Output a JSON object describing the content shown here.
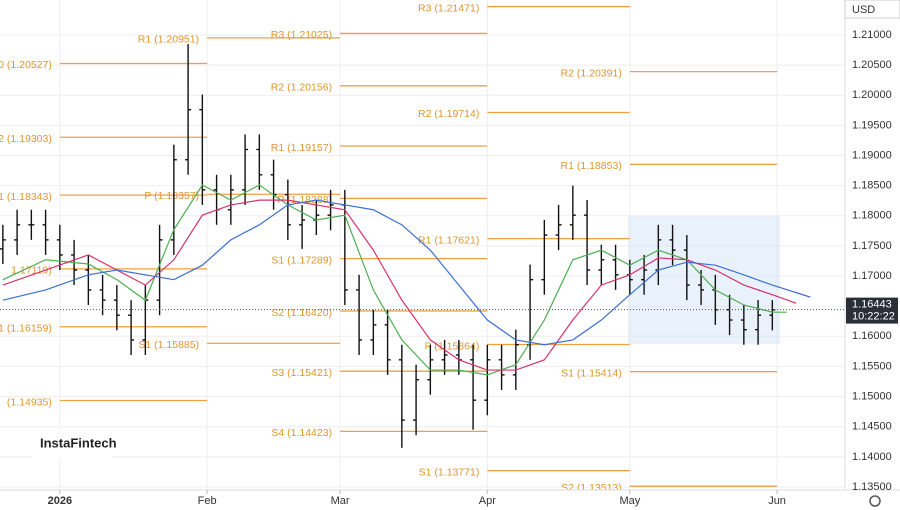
{
  "chart_data": {
    "type": "ohlc",
    "currency": "USD",
    "watermark": "InstaFintech",
    "xlim": [
      -12.6,
      165.3
    ],
    "xticks": [
      {
        "value": 0,
        "label": "2026"
      },
      {
        "value": 31,
        "label": "Feb"
      },
      {
        "value": 59,
        "label": "Mar"
      },
      {
        "value": 90,
        "label": "Apr"
      },
      {
        "value": 120,
        "label": "May"
      },
      {
        "value": 151,
        "label": "Jun"
      }
    ],
    "ylim": [
      1.1345,
      1.2158
    ],
    "yticks": [
      {
        "value": 1.135,
        "label": "1.13500"
      },
      {
        "value": 1.14,
        "label": "1.14000"
      },
      {
        "value": 1.145,
        "label": "1.14500"
      },
      {
        "value": 1.15,
        "label": "1.15000"
      },
      {
        "value": 1.155,
        "label": "1.15500"
      },
      {
        "value": 1.16,
        "label": "1.16000"
      },
      {
        "value": 1.165,
        "label": "1.16500"
      },
      {
        "value": 1.17,
        "label": "1.17000"
      },
      {
        "value": 1.175,
        "label": "1.17500"
      },
      {
        "value": 1.18,
        "label": "1.18000"
      },
      {
        "value": 1.185,
        "label": "1.18500"
      },
      {
        "value": 1.19,
        "label": "1.19000"
      },
      {
        "value": 1.195,
        "label": "1.19500"
      },
      {
        "value": 1.2,
        "label": "1.20000"
      },
      {
        "value": 1.205,
        "label": "1.20500"
      },
      {
        "value": 1.21,
        "label": "1.21000"
      }
    ],
    "grid": true,
    "bar_color": "#111111",
    "x": [
      -12,
      -9,
      -6,
      -3,
      0,
      3,
      6,
      9,
      12,
      15,
      18,
      21,
      24,
      27,
      30,
      33,
      36,
      39,
      42,
      45,
      48,
      51,
      54,
      57,
      60,
      63,
      66,
      69,
      72,
      75,
      78,
      81,
      84,
      87,
      90,
      93,
      96,
      99,
      102,
      105,
      108,
      111,
      114,
      117,
      120,
      123,
      126,
      129,
      132,
      135,
      138,
      141,
      144,
      147,
      150
    ],
    "open": [
      1.1745,
      1.176,
      1.1785,
      1.1785,
      1.176,
      1.1735,
      1.171,
      1.1677,
      1.166,
      1.1635,
      1.1594,
      1.166,
      1.176,
      1.1893,
      1.1976,
      1.1843,
      1.181,
      1.1843,
      1.191,
      1.1868,
      1.1835,
      1.1785,
      1.1793,
      1.1801,
      1.1818,
      1.1677,
      1.1594,
      1.1619,
      1.1561,
      1.1461,
      1.1528,
      1.1561,
      1.1569,
      1.1561,
      1.1494,
      1.1561,
      1.1536,
      1.1586,
      1.1694,
      1.1768,
      1.1785,
      1.1801,
      1.171,
      1.1727,
      1.1702,
      1.1694,
      1.171,
      1.176,
      1.1743,
      1.1685,
      1.1677,
      1.1644,
      1.1627,
      1.1611,
      1.1635
    ],
    "high": [
      1.1785,
      1.181,
      1.181,
      1.181,
      1.1785,
      1.176,
      1.1735,
      1.1702,
      1.1685,
      1.166,
      1.1685,
      1.1785,
      1.1918,
      1.2085,
      1.2001,
      1.1868,
      1.1868,
      1.1935,
      1.1935,
      1.1893,
      1.186,
      1.1818,
      1.1826,
      1.1843,
      1.1843,
      1.1702,
      1.1644,
      1.1644,
      1.1586,
      1.1553,
      1.1586,
      1.1594,
      1.1594,
      1.1586,
      1.1586,
      1.1586,
      1.1611,
      1.1719,
      1.1793,
      1.1818,
      1.185,
      1.1826,
      1.1752,
      1.1752,
      1.1727,
      1.1735,
      1.1785,
      1.1785,
      1.1768,
      1.171,
      1.1702,
      1.1669,
      1.1652,
      1.166,
      1.166
    ],
    "low": [
      1.172,
      1.1735,
      1.176,
      1.1735,
      1.171,
      1.1685,
      1.1652,
      1.1635,
      1.161,
      1.1569,
      1.1569,
      1.1635,
      1.1735,
      1.1868,
      1.1818,
      1.1785,
      1.1785,
      1.1818,
      1.1843,
      1.181,
      1.176,
      1.1745,
      1.1768,
      1.1776,
      1.1652,
      1.1569,
      1.1569,
      1.1536,
      1.1415,
      1.1436,
      1.1503,
      1.1536,
      1.1536,
      1.1445,
      1.1469,
      1.1511,
      1.1511,
      1.1561,
      1.1669,
      1.1743,
      1.176,
      1.1685,
      1.1685,
      1.1677,
      1.1669,
      1.1669,
      1.1685,
      1.1718,
      1.166,
      1.1652,
      1.1619,
      1.1602,
      1.1586,
      1.1586,
      1.161
    ],
    "close": [
      1.176,
      1.1785,
      1.1785,
      1.176,
      1.1735,
      1.171,
      1.1677,
      1.166,
      1.1635,
      1.1594,
      1.166,
      1.176,
      1.1893,
      1.1976,
      1.1843,
      1.181,
      1.1843,
      1.191,
      1.1868,
      1.1835,
      1.1785,
      1.1793,
      1.1801,
      1.1818,
      1.1677,
      1.1594,
      1.1619,
      1.1561,
      1.1461,
      1.1528,
      1.1561,
      1.1569,
      1.1561,
      1.1494,
      1.1561,
      1.1536,
      1.1586,
      1.1694,
      1.1768,
      1.1785,
      1.1801,
      1.171,
      1.1727,
      1.1702,
      1.1694,
      1.171,
      1.176,
      1.1743,
      1.1685,
      1.1677,
      1.1644,
      1.1627,
      1.1611,
      1.1635,
      1.1644
    ],
    "lines": [
      {
        "color": "#4caf50",
        "x": [
          -12,
          -3,
          6,
          12,
          18,
          24,
          30,
          36,
          42,
          48,
          54,
          60,
          66,
          72,
          78,
          84,
          90,
          96,
          102,
          108,
          114,
          120,
          126,
          132,
          138,
          144,
          150,
          153
        ],
        "values": [
          1.1694,
          1.1727,
          1.172,
          1.1694,
          1.166,
          1.1777,
          1.1851,
          1.1826,
          1.1851,
          1.1818,
          1.1793,
          1.1801,
          1.1677,
          1.1594,
          1.1544,
          1.1544,
          1.1536,
          1.1553,
          1.1627,
          1.1727,
          1.1743,
          1.1718,
          1.1743,
          1.1727,
          1.1677,
          1.1652,
          1.164,
          1.164
        ]
      },
      {
        "color": "#d6336c",
        "x": [
          -12,
          -3,
          6,
          12,
          18,
          24,
          30,
          36,
          42,
          48,
          54,
          60,
          66,
          72,
          78,
          84,
          90,
          96,
          102,
          108,
          114,
          120,
          126,
          132,
          138,
          144,
          150,
          155
        ],
        "values": [
          1.1685,
          1.171,
          1.1735,
          1.171,
          1.1685,
          1.1727,
          1.1801,
          1.1818,
          1.1826,
          1.1826,
          1.1818,
          1.181,
          1.1743,
          1.166,
          1.1594,
          1.1561,
          1.1544,
          1.1544,
          1.1561,
          1.1627,
          1.1685,
          1.1702,
          1.173,
          1.1727,
          1.171,
          1.1685,
          1.1669,
          1.1655
        ]
      },
      {
        "color": "#3b6fd4",
        "x": [
          -12,
          -3,
          6,
          12,
          18,
          24,
          30,
          36,
          42,
          48,
          54,
          60,
          66,
          72,
          78,
          84,
          90,
          96,
          102,
          108,
          114,
          120,
          126,
          132,
          138,
          144,
          150,
          158
        ],
        "values": [
          1.166,
          1.1677,
          1.1702,
          1.171,
          1.1702,
          1.1694,
          1.1718,
          1.176,
          1.1785,
          1.1818,
          1.1826,
          1.1818,
          1.181,
          1.1785,
          1.1743,
          1.1685,
          1.1627,
          1.1594,
          1.1586,
          1.1594,
          1.1627,
          1.1669,
          1.171,
          1.1723,
          1.1718,
          1.1702,
          1.1685,
          1.1665
        ]
      }
    ],
    "pivot_color": "#f0a040",
    "pivots": [
      {
        "start": 0,
        "end": 31,
        "levels": [
          {
            "value": 1.20527,
            "label": "0 (1.20527)"
          },
          {
            "value": 1.19303,
            "label": "2 (1.19303)"
          },
          {
            "value": 1.18343,
            "label": "1 (1.18343)"
          },
          {
            "value": 1.17119,
            "label": "1.17119)"
          },
          {
            "value": 1.16159,
            "label": "1 (1.16159)"
          },
          {
            "value": 1.14935,
            "label": "(1.14935)"
          }
        ]
      },
      {
        "start": 31,
        "end": 59,
        "levels": [
          {
            "value": 1.20951,
            "label": "R1 (1.20951)"
          },
          {
            "value": 1.18357,
            "label": "P (1.18357)"
          },
          {
            "value": 1.15885,
            "label": "S1 (1.15885)"
          }
        ]
      },
      {
        "start": 59,
        "end": 90,
        "levels": [
          {
            "value": 1.21025,
            "label": "R3 (1.21025)"
          },
          {
            "value": 1.20156,
            "label": "R2 (1.20156)"
          },
          {
            "value": 1.19157,
            "label": "R1 (1.19157)"
          },
          {
            "value": 1.18288,
            "label": "P (1.18288)"
          },
          {
            "value": 1.17289,
            "label": "S1 (1.17289)"
          },
          {
            "value": 1.1642,
            "label": "S2 (1.16420)"
          },
          {
            "value": 1.15421,
            "label": "S3 (1.15421)"
          },
          {
            "value": 1.14423,
            "label": "S4 (1.14423)"
          }
        ]
      },
      {
        "start": 90,
        "end": 120,
        "levels": [
          {
            "value": 1.21471,
            "label": "R3 (1.21471)"
          },
          {
            "value": 1.19714,
            "label": "R2 (1.19714)"
          },
          {
            "value": 1.17621,
            "label": "R1 (1.17621)"
          },
          {
            "value": 1.15864,
            "label": "P (1.15864)"
          },
          {
            "value": 1.13771,
            "label": "S1 (1.13771)"
          }
        ]
      },
      {
        "start": 120,
        "end": 151,
        "levels": [
          {
            "value": 1.20391,
            "label": "R2 (1.20391)"
          },
          {
            "value": 1.18853,
            "label": "R1 (1.18853)"
          },
          {
            "value": 1.15414,
            "label": "S1 (1.15414)"
          },
          {
            "value": 1.13513,
            "label": "S2 (1.13513)"
          }
        ]
      }
    ],
    "last_price": 1.16443,
    "last_time": "10:22:22"
  }
}
